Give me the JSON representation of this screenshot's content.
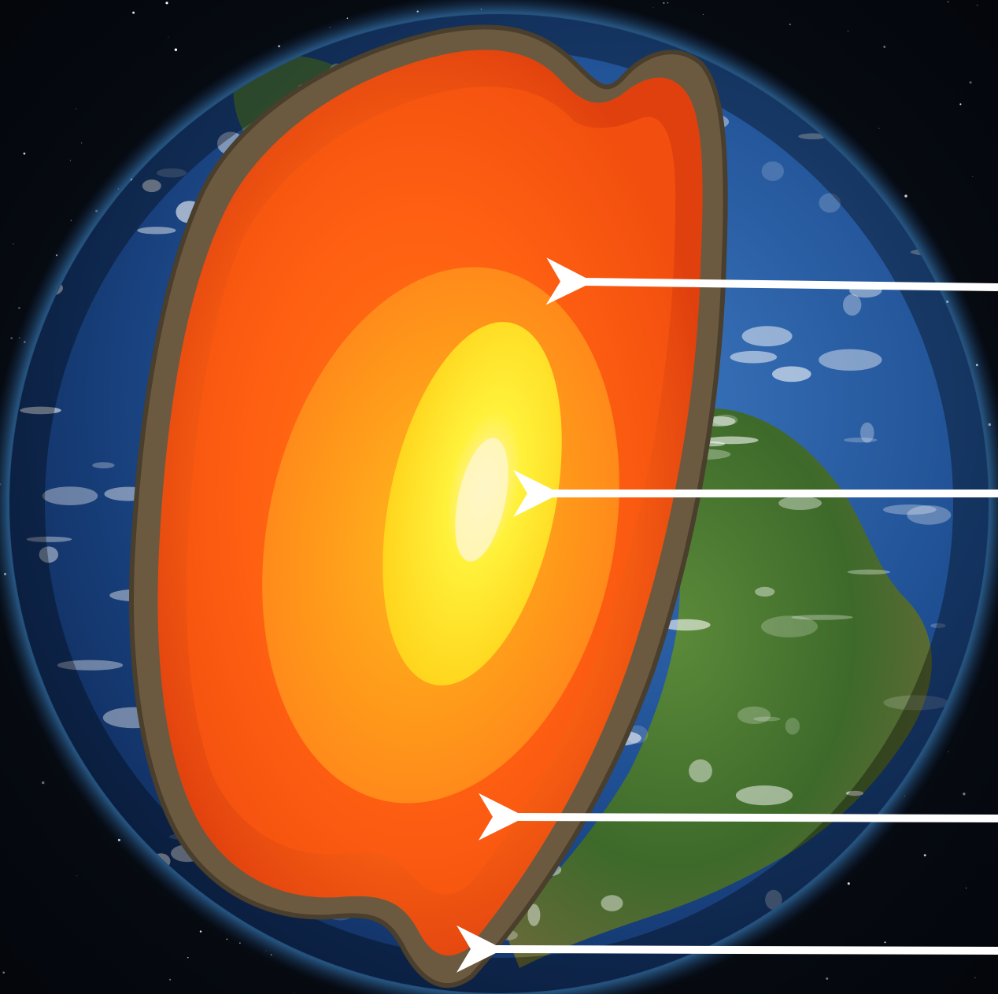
{
  "diagram": {
    "subject": "earth-interior-cutaway",
    "layers_outer_to_inner": [
      "crust",
      "mantle",
      "outer-core",
      "inner-core"
    ],
    "pointer_labels": [],
    "colors": {
      "space": "#05070d",
      "ocean": "#1f4f93",
      "land": "#3d6a2a",
      "crust": "#6b5a40",
      "mantle_outer": "#c94a14",
      "mantle_inner": "#ff5a10",
      "outer_core": "#ff8a1a",
      "inner_core": "#ffe81a",
      "core_center": "#fff6c8",
      "arrow": "#ffffff"
    }
  }
}
